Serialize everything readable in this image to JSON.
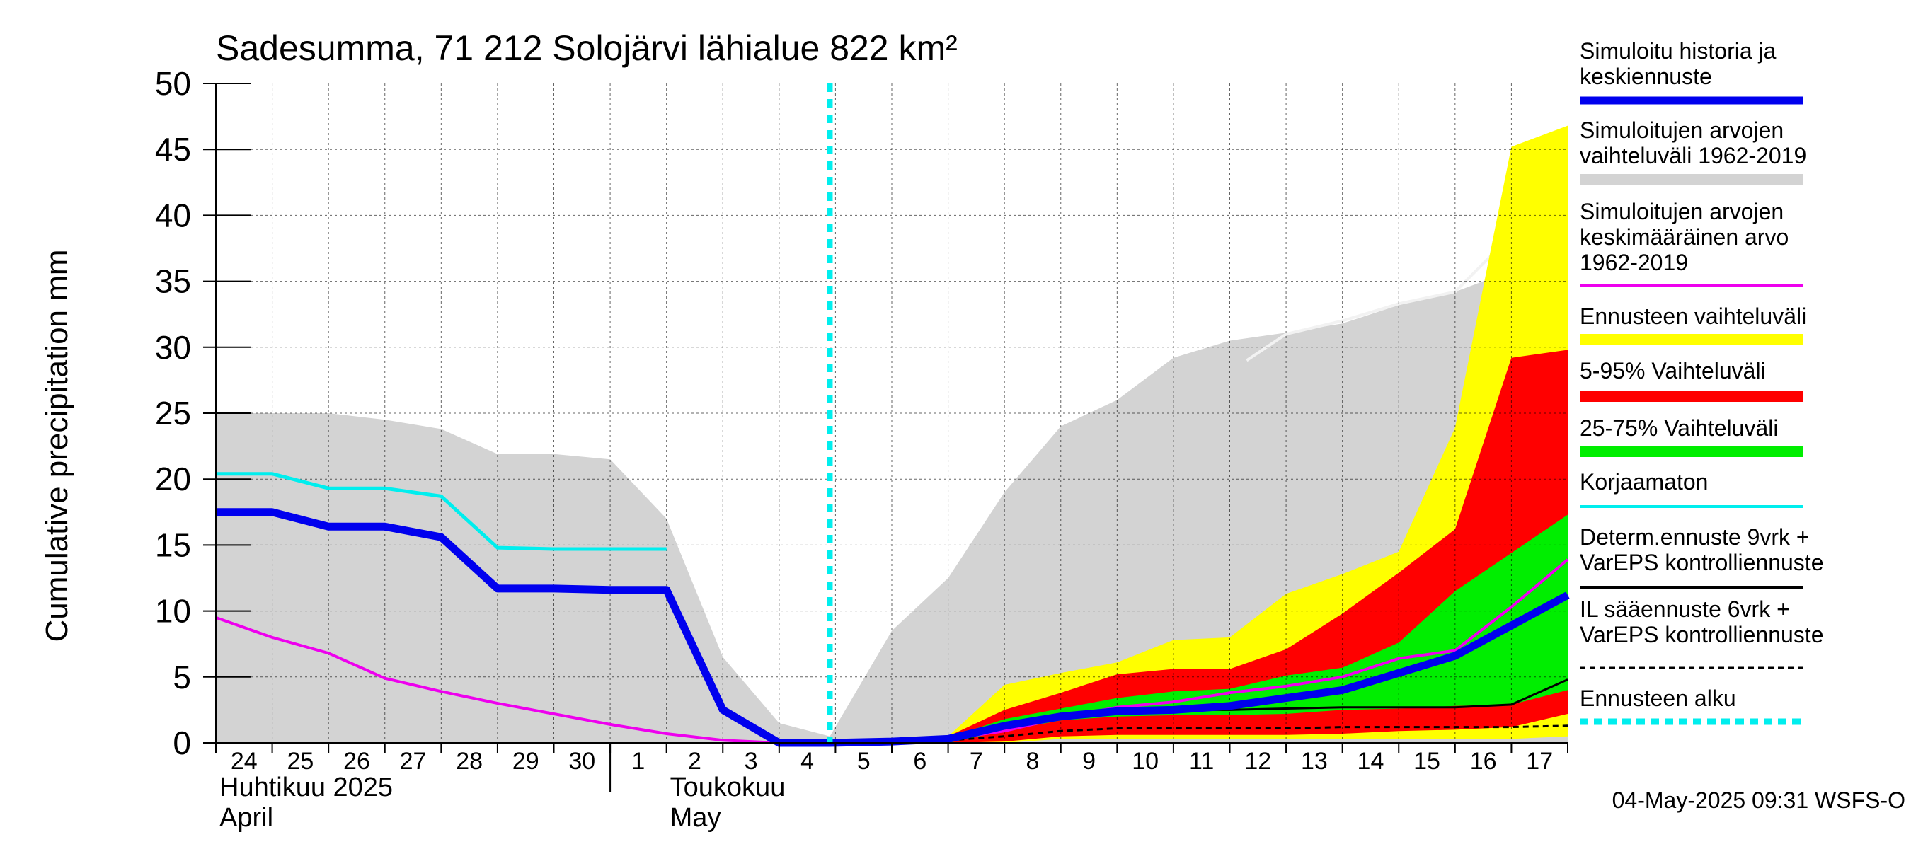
{
  "chart_data": {
    "type": "area",
    "title": "Sadesumma, 71 212 Solojärvi lähialue 822 km²",
    "ylabel": "Cumulative precipitation   mm",
    "ylim": [
      0,
      50
    ],
    "yticks": [
      0,
      5,
      10,
      15,
      20,
      25,
      30,
      35,
      40,
      45,
      50
    ],
    "x_day_ticks": [
      "24",
      "25",
      "26",
      "27",
      "28",
      "29",
      "30",
      "1",
      "2",
      "3",
      "4",
      "5",
      "6",
      "7",
      "8",
      "9",
      "10",
      "11",
      "12",
      "13",
      "14",
      "15",
      "16",
      "17"
    ],
    "month_labels": [
      {
        "line1": "Huhtikuu  2025",
        "line2": "April"
      },
      {
        "line1": "Toukokuu",
        "line2": "May"
      }
    ],
    "forecast_start_day": 10.9,
    "timestamp": "04-May-2025 09:31 WSFS-O",
    "legend": [
      {
        "label": "Simuloitu historia ja keskiennuste",
        "color": "#0000ee",
        "style": "thick"
      },
      {
        "label": "Simuloitujen arvojen vaihteluväli 1962-2019",
        "color": "#d3d3d3",
        "style": "band"
      },
      {
        "label": "Simuloitujen arvojen keskimääräinen arvo 1962-2019",
        "color": "#ee00ee",
        "style": "line"
      },
      {
        "label": "Ennusteen vaihteluväli",
        "color": "#ffff00",
        "style": "band"
      },
      {
        "label": "5-95% Vaihteluväli",
        "color": "#ff0000",
        "style": "band"
      },
      {
        "label": "25-75% Vaihteluväli",
        "color": "#00ee00",
        "style": "band"
      },
      {
        "label": "Korjaamaton",
        "color": "#00eeee",
        "style": "line"
      },
      {
        "label": "Determ.ennuste 9vrk + VarEPS kontrolliennuste",
        "color": "#000000",
        "style": "line"
      },
      {
        "label": "IL sääennuste 6vrk  + VarEPS kontrolliennuste",
        "color": "#000000",
        "style": "dashed"
      },
      {
        "label": "Ennusteen alku",
        "color": "#00eeee",
        "style": "dotted"
      }
    ],
    "series": {
      "hist_range": {
        "x": [
          0,
          1,
          2,
          3,
          4,
          5,
          6,
          7,
          8,
          9,
          10,
          10.9,
          12,
          13,
          14,
          15,
          16,
          17,
          18,
          19,
          20,
          21,
          22,
          23,
          24
        ],
        "upper": [
          25,
          25,
          25,
          24.5,
          23.8,
          21.9,
          21.9,
          21.5,
          17,
          6.5,
          1.5,
          0.5,
          8.5,
          12.5,
          19,
          24,
          26,
          29.2,
          30.5,
          31.1,
          31.8,
          33.2,
          34.2,
          35.8,
          42
        ],
        "lower": [
          0,
          0,
          0,
          0,
          0,
          0,
          0,
          0,
          0,
          0,
          0,
          0,
          0,
          0,
          0,
          0,
          0,
          0,
          0,
          0,
          0,
          0,
          0,
          0,
          0
        ]
      },
      "hist_mean_line": {
        "x": [
          18.3,
          19,
          20,
          21,
          22,
          23,
          24
        ],
        "y": [
          29,
          31,
          32,
          33.3,
          34.2,
          38.5,
          41.8
        ]
      },
      "ens_full": {
        "x": [
          10.9,
          12,
          13,
          14,
          15,
          16,
          17,
          18,
          19,
          20,
          21,
          22,
          23,
          24
        ],
        "upper": [
          0.1,
          0.3,
          0.5,
          4.4,
          5.3,
          6.1,
          7.8,
          8,
          11.3,
          12.8,
          14.5,
          23.9,
          45.2,
          46.8
        ],
        "lower": [
          0,
          0,
          0,
          0,
          0.3,
          0.3,
          0.3,
          0.3,
          0.3,
          0.3,
          0.3,
          0.3,
          0.3,
          0.5
        ]
      },
      "ens_5_95": {
        "x": [
          10.9,
          12,
          13,
          14,
          15,
          16,
          17,
          18,
          19,
          20,
          21,
          22,
          23,
          24
        ],
        "upper": [
          0.1,
          0.3,
          0.5,
          2.5,
          3.8,
          5.2,
          5.6,
          5.6,
          7.1,
          9.8,
          12.9,
          16.2,
          29.2,
          29.8
        ],
        "lower": [
          0,
          0,
          0,
          0.1,
          0.5,
          0.6,
          0.6,
          0.6,
          0.6,
          0.7,
          0.9,
          1,
          1.2,
          2.2
        ]
      },
      "ens_25_75": {
        "x": [
          10.9,
          12,
          13,
          14,
          15,
          16,
          17,
          18,
          19,
          20,
          21,
          22,
          23,
          24
        ],
        "upper": [
          0,
          0.3,
          0.4,
          1.8,
          2.6,
          3.4,
          3.9,
          4.1,
          5.1,
          5.7,
          7.6,
          11.5,
          14.4,
          17.3
        ],
        "lower": [
          0,
          0,
          0,
          0.9,
          1.7,
          2,
          2.1,
          2.1,
          2.2,
          2.5,
          2.6,
          2.8,
          2.9,
          4
        ]
      },
      "mean": {
        "x": [
          0,
          1,
          2,
          3,
          4,
          5,
          6,
          7,
          8,
          9,
          10,
          10.9,
          12,
          13,
          14,
          15,
          16,
          17,
          18,
          19,
          20,
          21,
          22,
          23,
          24
        ],
        "y": [
          9.5,
          8,
          6.8,
          4.9,
          3.9,
          3,
          2.2,
          1.4,
          0.7,
          0.2,
          0,
          0,
          0.1,
          0.3,
          0.9,
          1.9,
          2.7,
          3.1,
          3.8,
          4.3,
          5,
          6.4,
          7,
          10.3,
          13.9
        ]
      },
      "uncorrected": {
        "x": [
          0,
          1,
          2,
          3,
          4,
          5,
          6,
          7,
          8
        ],
        "y": [
          20.4,
          20.4,
          19.3,
          19.3,
          18.7,
          14.8,
          14.7,
          14.7,
          14.7
        ]
      },
      "simulated": {
        "x": [
          0,
          1,
          2,
          3,
          4,
          5,
          6,
          7,
          8,
          9,
          10,
          10.9,
          12,
          13,
          14,
          15,
          16,
          17,
          18,
          19,
          20,
          21,
          22,
          23,
          24
        ],
        "y": [
          17.5,
          17.5,
          16.4,
          16.4,
          15.6,
          11.7,
          11.7,
          11.6,
          11.6,
          2.5,
          0,
          0,
          0.1,
          0.3,
          1.3,
          2,
          2.4,
          2.5,
          2.8,
          3.4,
          4,
          5.3,
          6.6,
          8.9,
          11.2
        ]
      },
      "determ": {
        "x": [
          10.9,
          12,
          13,
          14,
          15,
          16,
          17,
          18,
          19,
          20,
          21,
          22,
          23,
          24
        ],
        "y": [
          0,
          0.1,
          0.3,
          1.3,
          2,
          2.4,
          2.5,
          2.5,
          2.6,
          2.7,
          2.7,
          2.7,
          2.9,
          4.8
        ]
      },
      "il_forecast": {
        "x": [
          10.9,
          12,
          13,
          14,
          15,
          16,
          17,
          18,
          19,
          20,
          21,
          22,
          23,
          24
        ],
        "y": [
          0,
          0.05,
          0.2,
          0.5,
          0.9,
          1.1,
          1.1,
          1.1,
          1.1,
          1.2,
          1.2,
          1.2,
          1.2,
          1.3
        ]
      }
    }
  }
}
